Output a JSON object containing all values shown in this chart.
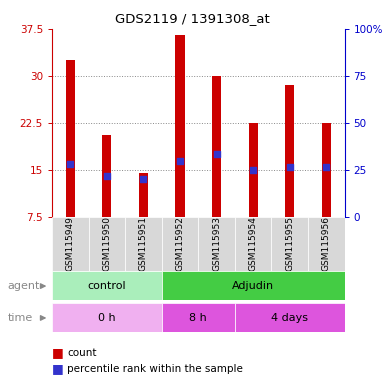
{
  "title": "GDS2119 / 1391308_at",
  "samples": [
    "GSM115949",
    "GSM115950",
    "GSM115951",
    "GSM115952",
    "GSM115953",
    "GSM115954",
    "GSM115955",
    "GSM115956"
  ],
  "counts": [
    32.5,
    20.5,
    14.5,
    36.5,
    30.0,
    22.5,
    28.5,
    22.5
  ],
  "percentile_ranks_left": [
    16.0,
    14.0,
    13.5,
    16.5,
    17.5,
    15.0,
    15.5,
    15.5
  ],
  "bar_bottom": 7.5,
  "ylim_left": [
    7.5,
    37.5
  ],
  "ylim_right": [
    0,
    100
  ],
  "yticks_left": [
    7.5,
    15.0,
    22.5,
    30.0,
    37.5
  ],
  "ytick_labels_left": [
    "7.5",
    "15",
    "22.5",
    "30",
    "37.5"
  ],
  "yticks_right": [
    0,
    25,
    50,
    75,
    100
  ],
  "ytick_labels_right": [
    "0",
    "25",
    "50",
    "75",
    "100%"
  ],
  "bar_color": "#cc0000",
  "dot_color": "#3333cc",
  "agent_groups": [
    {
      "label": "control",
      "start": 0,
      "end": 3,
      "color": "#aaeebb"
    },
    {
      "label": "Adjudin",
      "start": 3,
      "end": 8,
      "color": "#44cc44"
    }
  ],
  "time_groups": [
    {
      "label": "0 h",
      "start": 0,
      "end": 3,
      "color": "#f0b0f0"
    },
    {
      "label": "8 h",
      "start": 3,
      "end": 5,
      "color": "#dd55dd"
    },
    {
      "label": "4 days",
      "start": 5,
      "end": 8,
      "color": "#dd55dd"
    }
  ],
  "legend_count_color": "#cc0000",
  "legend_dot_color": "#3333cc",
  "label_agent": "agent",
  "label_time": "time",
  "grid_color": "#888888",
  "tick_color_left": "#cc0000",
  "tick_color_right": "#0000cc",
  "bar_width": 0.25,
  "dot_size": 22
}
